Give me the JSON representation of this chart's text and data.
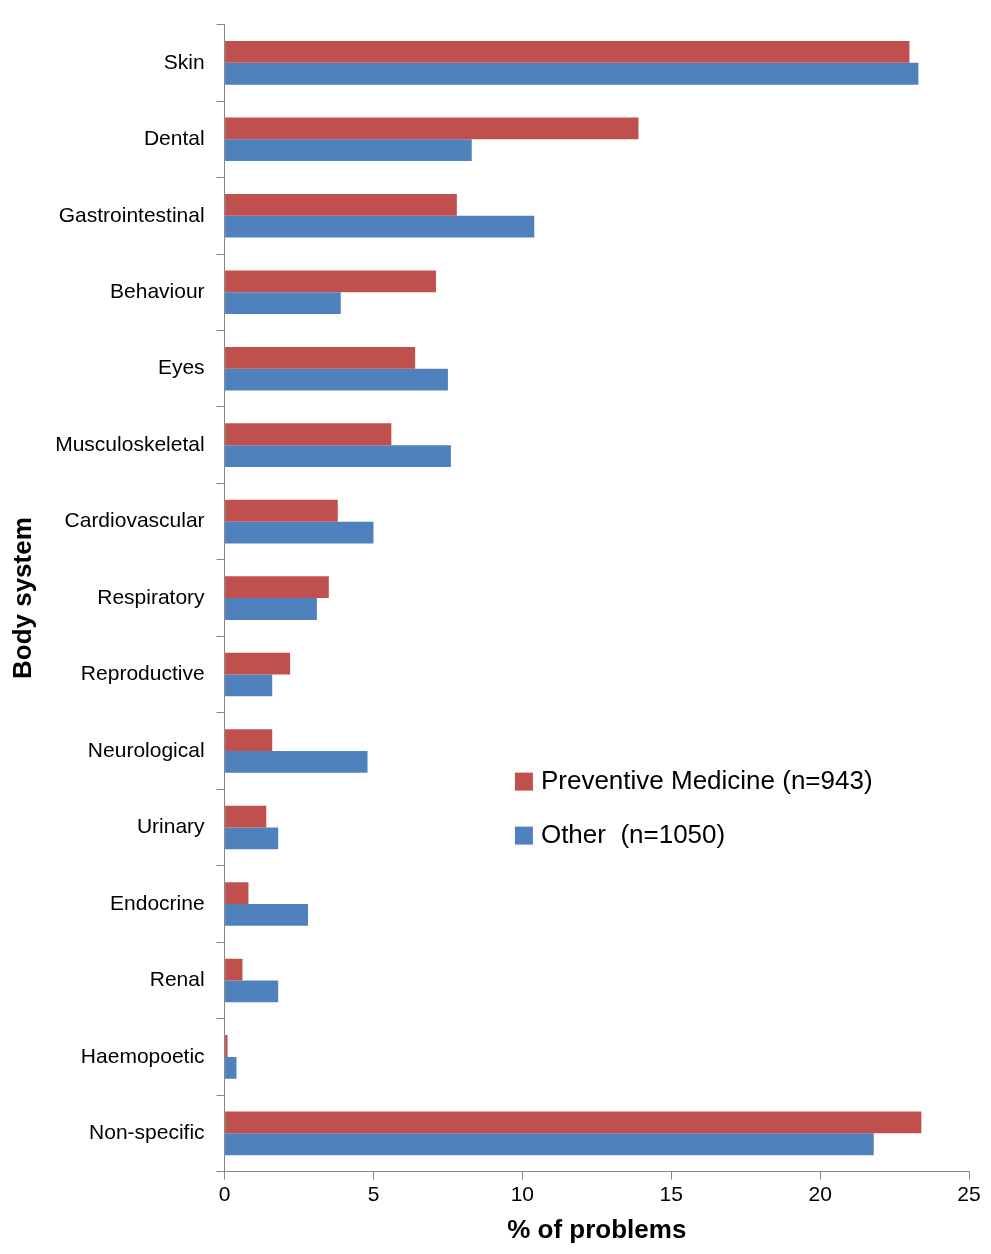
{
  "chart_data": {
    "type": "bar",
    "orientation": "horizontal",
    "xlabel": "% of problems",
    "ylabel": "Body system",
    "categories": [
      "Skin",
      "Dental",
      "Gastrointestinal",
      "Behaviour",
      "Eyes",
      "Musculoskeletal",
      "Cardiovascular",
      "Respiratory",
      "Reproductive",
      "Neurological",
      "Urinary",
      "Endocrine",
      "Renal",
      "Haemopoetic",
      "Non-specific"
    ],
    "series": [
      {
        "name": "Preventive Medicine (n=943)",
        "color": "#c0504d",
        "values": [
          23.0,
          13.9,
          7.8,
          7.1,
          6.4,
          5.6,
          3.8,
          3.5,
          2.2,
          1.6,
          1.4,
          0.8,
          0.6,
          0.1,
          23.4
        ]
      },
      {
        "name": "Other  (n=1050)",
        "color": "#4f81bd",
        "values": [
          23.3,
          8.3,
          10.4,
          3.9,
          7.5,
          7.6,
          5.0,
          3.1,
          1.6,
          4.8,
          1.8,
          2.8,
          1.8,
          0.4,
          21.8
        ]
      }
    ],
    "xlim": [
      0,
      25
    ],
    "xticks": [
      0,
      5,
      10,
      15,
      20,
      25
    ],
    "grid": false,
    "legend": "right"
  }
}
